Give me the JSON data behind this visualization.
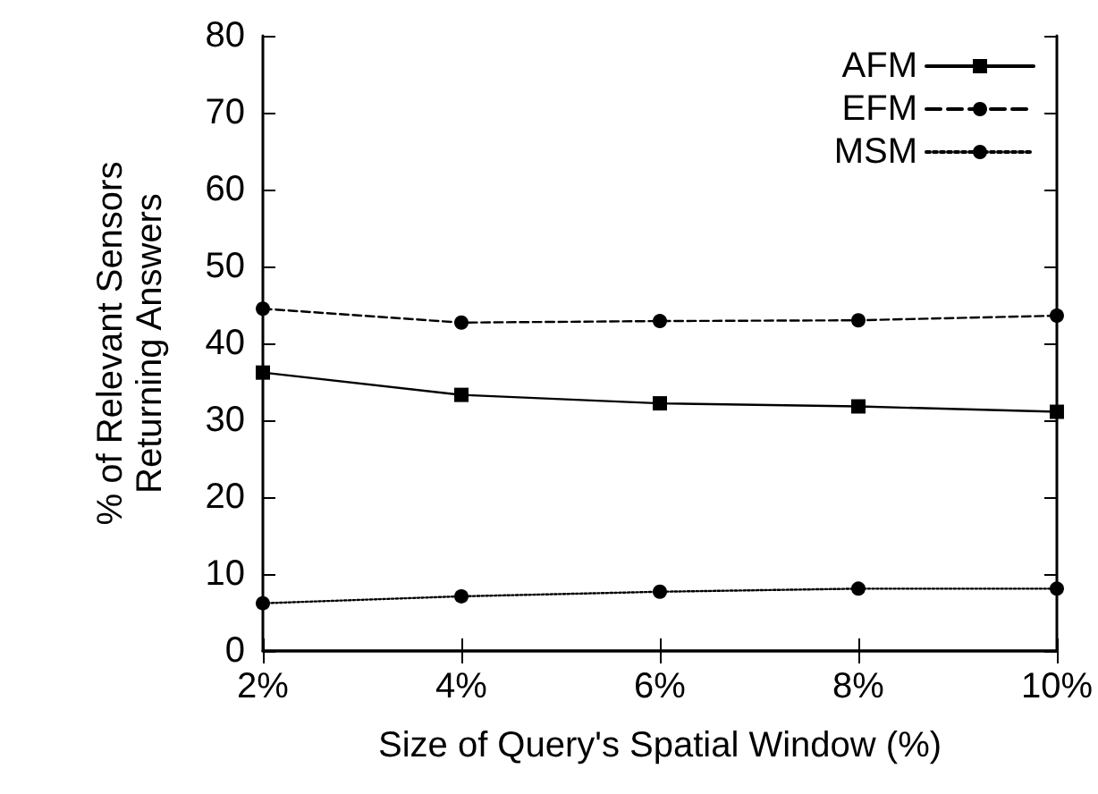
{
  "chart_data": {
    "type": "line",
    "xlabel": "Size of Query's Spatial Window (%)",
    "ylabel": "% of Relevant Sensors\nReturning Answers",
    "x": [
      2,
      4,
      6,
      8,
      10
    ],
    "series": [
      {
        "name": "AFM",
        "color": "#000000",
        "marker": "square",
        "line_style": "solid",
        "values": [
          36.2,
          33.3,
          32.2,
          31.8,
          31.1
        ]
      },
      {
        "name": "EFM",
        "color": "#000000",
        "marker": "circle",
        "line_style": "dashed",
        "values": [
          44.5,
          42.7,
          42.9,
          43.0,
          43.6
        ]
      },
      {
        "name": "MSM",
        "color": "#000000",
        "marker": "circle",
        "line_style": "dotted",
        "values": [
          6.2,
          7.1,
          7.7,
          8.1,
          8.1
        ]
      }
    ],
    "xlim": [
      2,
      10
    ],
    "xticks": [
      {
        "value": 2,
        "label": "2%"
      },
      {
        "value": 4,
        "label": "4%"
      },
      {
        "value": 6,
        "label": "6%"
      },
      {
        "value": 8,
        "label": "8%"
      },
      {
        "value": 10,
        "label": "10%"
      }
    ],
    "ylim": [
      0,
      80
    ],
    "yticks": [
      0,
      10,
      20,
      30,
      40,
      50,
      60,
      70,
      80
    ],
    "grid": false,
    "legend": "top right"
  }
}
